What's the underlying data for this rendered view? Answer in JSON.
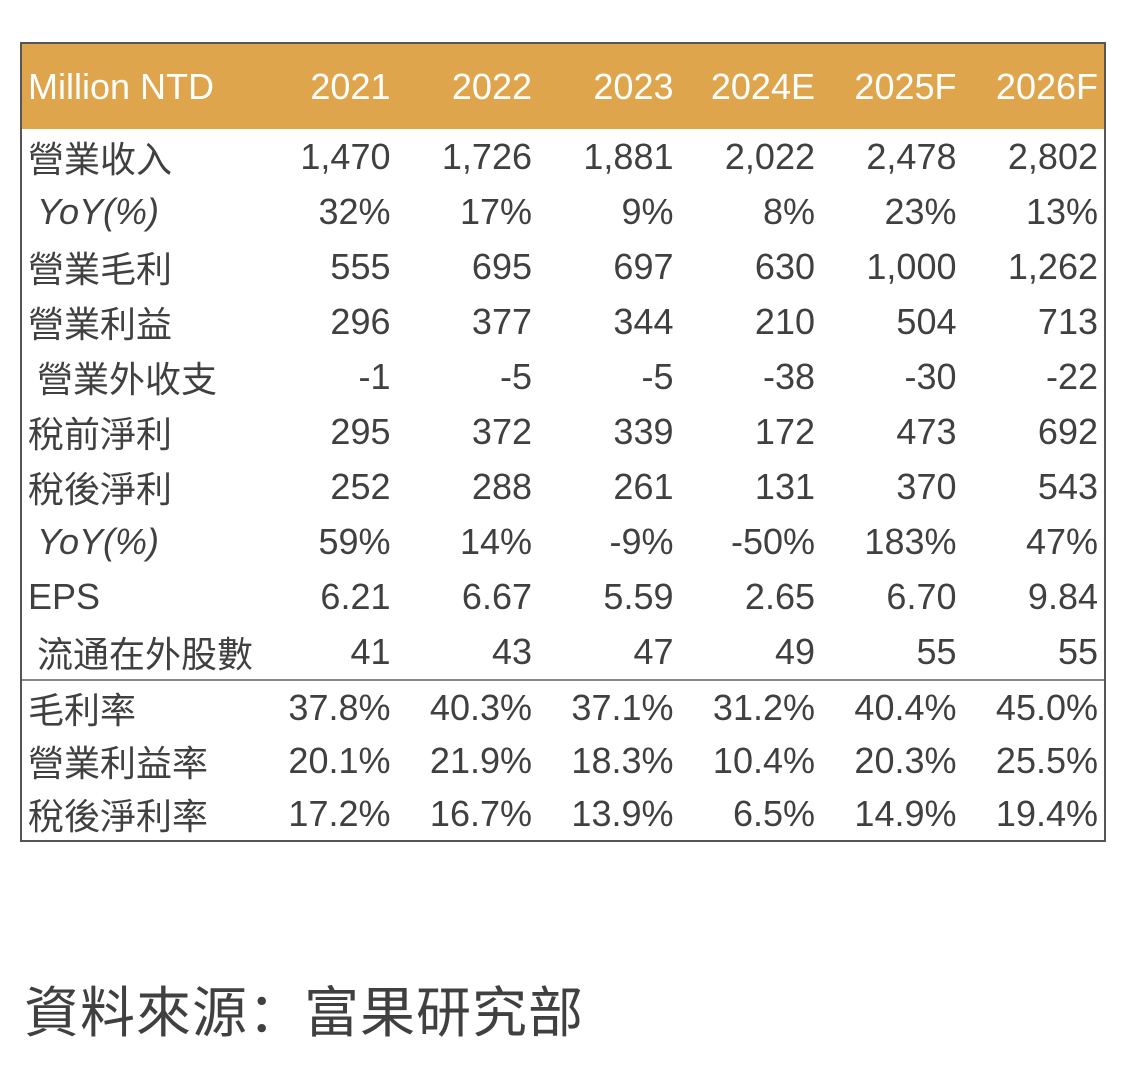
{
  "chart_data": {
    "type": "table",
    "columns": [
      "Million NTD",
      "2021",
      "2022",
      "2023",
      "2024E",
      "2025F",
      "2026F"
    ],
    "rows": [
      {
        "label": "營業收入",
        "indent": false,
        "italic": false,
        "values": [
          "1,470",
          "1,726",
          "1,881",
          "2,022",
          "2,478",
          "2,802"
        ]
      },
      {
        "label": "YoY(%)",
        "indent": true,
        "italic": true,
        "values": [
          "32%",
          "17%",
          "9%",
          "8%",
          "23%",
          "13%"
        ]
      },
      {
        "label": "營業毛利",
        "indent": false,
        "italic": false,
        "values": [
          "555",
          "695",
          "697",
          "630",
          "1,000",
          "1,262"
        ]
      },
      {
        "label": "營業利益",
        "indent": false,
        "italic": false,
        "values": [
          "296",
          "377",
          "344",
          "210",
          "504",
          "713"
        ]
      },
      {
        "label": "營業外收支",
        "indent": true,
        "italic": false,
        "values": [
          "-1",
          "-5",
          "-5",
          "-38",
          "-30",
          "-22"
        ]
      },
      {
        "label": "稅前淨利",
        "indent": false,
        "italic": false,
        "values": [
          "295",
          "372",
          "339",
          "172",
          "473",
          "692"
        ]
      },
      {
        "label": "稅後淨利",
        "indent": false,
        "italic": false,
        "values": [
          "252",
          "288",
          "261",
          "131",
          "370",
          "543"
        ]
      },
      {
        "label": "YoY(%)",
        "indent": true,
        "italic": true,
        "values": [
          "59%",
          "14%",
          "-9%",
          "-50%",
          "183%",
          "47%"
        ]
      },
      {
        "label": "EPS",
        "indent": false,
        "italic": false,
        "values": [
          "6.21",
          "6.67",
          "5.59",
          "2.65",
          "6.70",
          "9.84"
        ]
      },
      {
        "label": "流通在外股數",
        "indent": true,
        "italic": false,
        "values": [
          "41",
          "43",
          "47",
          "49",
          "55",
          "55"
        ]
      }
    ],
    "ratio_rows": [
      {
        "label": "毛利率",
        "indent": false,
        "italic": false,
        "values": [
          "37.8%",
          "40.3%",
          "37.1%",
          "31.2%",
          "40.4%",
          "45.0%"
        ]
      },
      {
        "label": "營業利益率",
        "indent": false,
        "italic": false,
        "values": [
          "20.1%",
          "21.9%",
          "18.3%",
          "10.4%",
          "20.3%",
          "25.5%"
        ]
      },
      {
        "label": "稅後淨利率",
        "indent": false,
        "italic": false,
        "values": [
          "17.2%",
          "16.7%",
          "13.9%",
          "6.5%",
          "14.9%",
          "19.4%"
        ]
      }
    ],
    "source": "資料來源：富果研究部",
    "layout": {
      "grid": "off",
      "first_column_header": "Million NTD",
      "value_alignment": "right"
    }
  },
  "colors": {
    "header_bg": "#DFA54C",
    "header_text": "#FFFFFF",
    "body_text": "#404040",
    "border": "#555555",
    "separator": "#888888"
  }
}
